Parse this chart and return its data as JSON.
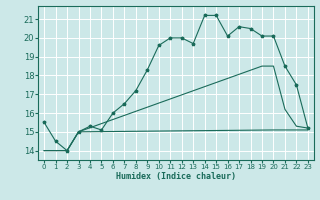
{
  "xlabel": "Humidex (Indice chaleur)",
  "bg_color": "#cce8e8",
  "grid_color": "#ffffff",
  "line_color": "#1a6b5a",
  "xlim": [
    -0.5,
    23.5
  ],
  "ylim": [
    13.5,
    21.7
  ],
  "xticks": [
    0,
    1,
    2,
    3,
    4,
    5,
    6,
    7,
    8,
    9,
    10,
    11,
    12,
    13,
    14,
    15,
    16,
    17,
    18,
    19,
    20,
    21,
    22,
    23
  ],
  "yticks": [
    14,
    15,
    16,
    17,
    18,
    19,
    20,
    21
  ],
  "line1_x": [
    0,
    1,
    2,
    3,
    4,
    5,
    6,
    7,
    8,
    9,
    10,
    11,
    12,
    13,
    14,
    15,
    16,
    17,
    18,
    19,
    20,
    21,
    22,
    23
  ],
  "line1_y": [
    15.5,
    14.5,
    14.0,
    15.0,
    15.3,
    15.1,
    16.0,
    16.5,
    17.2,
    18.3,
    19.6,
    20.0,
    20.0,
    19.7,
    21.2,
    21.2,
    20.1,
    20.6,
    20.5,
    20.1,
    20.1,
    18.5,
    17.5,
    15.2
  ],
  "line2_x": [
    0,
    2,
    3,
    20,
    23
  ],
  "line2_y": [
    14.0,
    14.0,
    15.0,
    15.1,
    15.1
  ],
  "line3_x": [
    0,
    2,
    3,
    19,
    20,
    21,
    22,
    23
  ],
  "line3_y": [
    14.0,
    14.0,
    15.0,
    18.5,
    18.5,
    16.2,
    15.3,
    15.2
  ]
}
